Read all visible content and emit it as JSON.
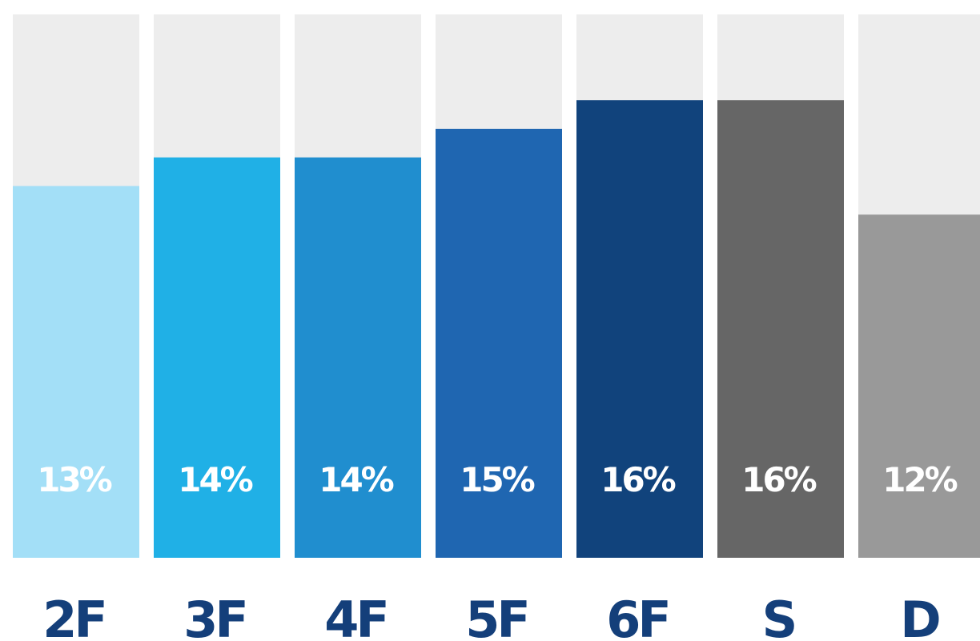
{
  "chart_data": {
    "type": "bar",
    "categories": [
      "2F",
      "3F",
      "4F",
      "5F",
      "6F",
      "S",
      "D"
    ],
    "values": [
      13,
      14,
      14,
      15,
      16,
      16,
      12
    ],
    "value_labels": [
      "13%",
      "14%",
      "14%",
      "15%",
      "16%",
      "16%",
      "12%"
    ],
    "unit": "%",
    "ylim": [
      0,
      19
    ],
    "grid": false,
    "colors": {
      "bars": [
        "#a3dff7",
        "#20b0e6",
        "#208ecf",
        "#1f66b1",
        "#11437c",
        "#666666",
        "#999999"
      ],
      "track": "#ededed",
      "category_label": "#143f7a",
      "value_label": "#ffffff"
    }
  }
}
